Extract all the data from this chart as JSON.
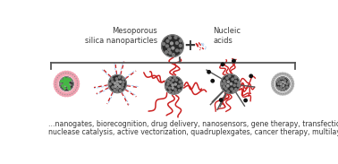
{
  "title_left": "Mesoporous\nsilica nanoparticles",
  "title_right": "Nucleic\nacids",
  "bottom_text_line1": "...nanogates, biorecognition, drug delivery, nanosensors, gene therapy, transfection, codelivery,",
  "bottom_text_line2": "nuclease catalysis, active vectorization, quadruplexgates, cancer therapy, multilayered devices...",
  "bg_color": "#ffffff",
  "text_color": "#3a3a3a",
  "nanoparticle_color": "#4a4a4a",
  "nanoparticle_dark": "#1a1a1a",
  "pink_color": "#f0a0b0",
  "green_color": "#44b844",
  "red_color": "#cc2222",
  "dark_gray": "#555555",
  "bracket_color": "#555555",
  "light_blue": "#aaccee"
}
